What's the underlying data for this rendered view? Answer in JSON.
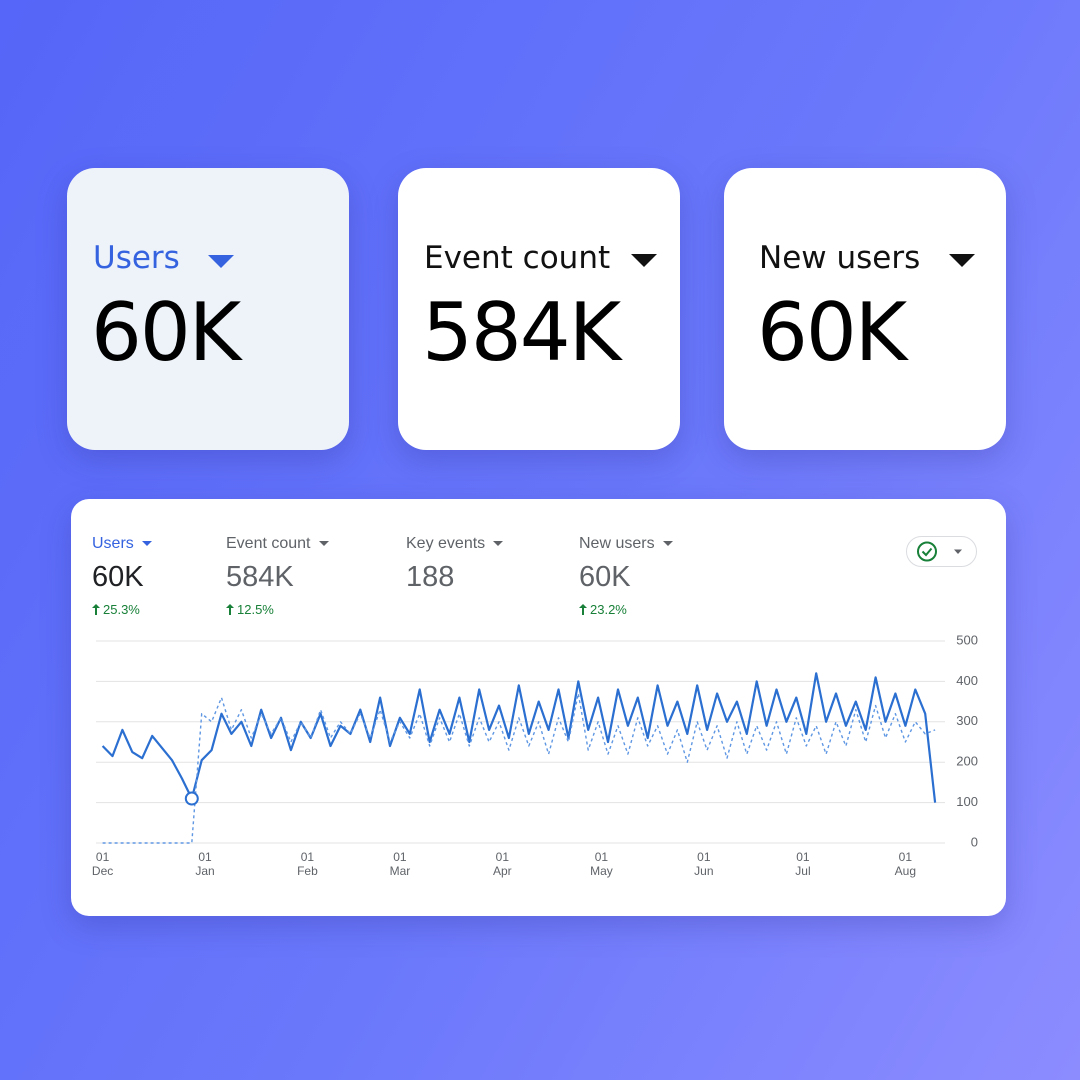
{
  "cards": [
    {
      "label": "Users",
      "value": "60K"
    },
    {
      "label": "Event count",
      "value": "584K"
    },
    {
      "label": "New users",
      "value": "60K"
    }
  ],
  "metrics": [
    {
      "label": "Users",
      "value": "60K",
      "change": "25.3%"
    },
    {
      "label": "Event count",
      "value": "584K",
      "change": "12.5%"
    },
    {
      "label": "Key events",
      "value": "188"
    },
    {
      "label": "New users",
      "value": "60K",
      "change": "23.2%"
    }
  ],
  "chart_data": {
    "type": "line",
    "x": [
      0,
      3,
      6,
      9,
      12,
      15,
      18,
      21,
      24,
      27,
      30,
      33,
      36,
      39,
      42,
      45,
      48,
      51,
      54,
      57,
      60,
      63,
      66,
      69,
      72,
      75,
      78,
      81,
      84,
      87,
      90,
      93,
      96,
      99,
      102,
      105,
      108,
      111,
      114,
      117,
      120,
      123,
      126,
      129,
      132,
      135,
      138,
      141,
      144,
      147,
      150,
      153,
      156,
      159,
      162,
      165,
      168,
      171,
      174,
      177,
      180,
      183,
      186,
      189,
      192,
      195,
      198,
      201,
      204,
      207,
      210,
      213,
      216,
      219,
      222,
      225,
      228,
      231,
      234,
      237,
      240,
      243,
      246,
      249,
      252
    ],
    "series": [
      {
        "color": "#2b6fd1",
        "values": [
          240,
          215,
          280,
          225,
          210,
          265,
          235,
          205,
          160,
          110,
          205,
          230,
          320,
          270,
          300,
          240,
          330,
          260,
          310,
          230,
          300,
          260,
          320,
          240,
          290,
          270,
          330,
          250,
          360,
          240,
          310,
          270,
          380,
          250,
          330,
          270,
          360,
          250,
          380,
          280,
          340,
          260,
          390,
          270,
          350,
          280,
          380,
          260,
          400,
          280,
          360,
          250,
          380,
          290,
          360,
          260,
          390,
          290,
          350,
          270,
          390,
          280,
          370,
          300,
          350,
          270,
          400,
          290,
          380,
          300,
          360,
          270,
          420,
          300,
          370,
          290,
          350,
          280,
          410,
          300,
          370,
          290,
          380,
          320,
          100
        ]
      },
      {
        "color": "#5f97e3",
        "dashed": true,
        "values": [
          0,
          0,
          0,
          0,
          0,
          0,
          0,
          0,
          0,
          0,
          320,
          300,
          360,
          280,
          330,
          260,
          320,
          270,
          310,
          250,
          300,
          260,
          330,
          260,
          300,
          270,
          320,
          260,
          330,
          250,
          300,
          260,
          320,
          240,
          310,
          250,
          320,
          240,
          310,
          250,
          300,
          230,
          310,
          240,
          300,
          220,
          310,
          250,
          370,
          230,
          300,
          220,
          290,
          220,
          310,
          240,
          290,
          220,
          280,
          200,
          300,
          230,
          290,
          210,
          300,
          220,
          290,
          230,
          300,
          220,
          310,
          240,
          290,
          220,
          300,
          240,
          330,
          250,
          340,
          260,
          320,
          250,
          300,
          270,
          280
        ]
      }
    ],
    "xlim": [
      -2,
      255
    ],
    "xticks": [
      {
        "value": 0,
        "label": "01 Dec"
      },
      {
        "value": 31,
        "label": "01 Jan"
      },
      {
        "value": 62,
        "label": "01 Feb"
      },
      {
        "value": 90,
        "label": "01 Mar"
      },
      {
        "value": 121,
        "label": "01 Apr"
      },
      {
        "value": 151,
        "label": "01 May"
      },
      {
        "value": 182,
        "label": "01 Jun"
      },
      {
        "value": 212,
        "label": "01 Jul"
      },
      {
        "value": 243,
        "label": "01 Aug"
      }
    ],
    "ylim": [
      0,
      500
    ],
    "yticks": [
      0,
      100,
      200,
      300,
      400,
      500
    ],
    "grid": true
  }
}
